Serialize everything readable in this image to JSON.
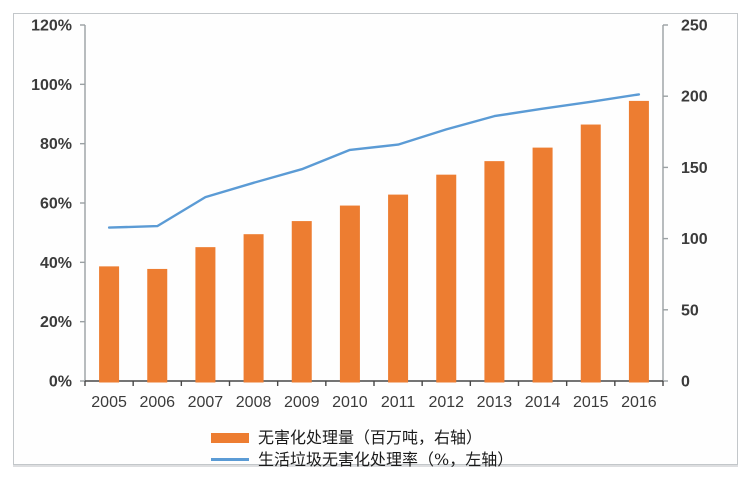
{
  "chart_data": {
    "type": "bar+line",
    "title": "",
    "categories": [
      "2005",
      "2006",
      "2007",
      "2008",
      "2009",
      "2010",
      "2011",
      "2012",
      "2013",
      "2014",
      "2015",
      "2016"
    ],
    "series": [
      {
        "name": "无害化处理量（百万吨，右轴）",
        "type": "bar",
        "axis": "right",
        "color": "#ed7d31",
        "values": [
          80.5,
          78.7,
          94.0,
          103.1,
          112.3,
          123.2,
          130.9,
          144.9,
          154.4,
          163.9,
          180.1,
          196.7
        ]
      },
      {
        "name": "生活垃圾无害化处理率（%，左轴）",
        "type": "line",
        "axis": "left",
        "color": "#5b9bd5",
        "values": [
          51.7,
          52.2,
          62.0,
          66.8,
          71.4,
          77.9,
          79.7,
          84.8,
          89.3,
          91.8,
          94.1,
          96.6
        ]
      }
    ],
    "left_axis": {
      "min": 0,
      "max": 120,
      "tick_step": 20,
      "tick_labels": [
        "0%",
        "20%",
        "40%",
        "60%",
        "80%",
        "100%",
        "120%"
      ]
    },
    "right_axis": {
      "min": 0,
      "max": 250,
      "tick_step": 50,
      "tick_labels": [
        "0",
        "50",
        "100",
        "150",
        "200",
        "250"
      ]
    },
    "grid": false,
    "legend_position": "bottom",
    "colors": {
      "bar": "#ed7d31",
      "line": "#5b9bd5",
      "side_axis": "#9aa0a3",
      "x_axis": "#474747",
      "tick_label": "#3b3b3b"
    }
  }
}
